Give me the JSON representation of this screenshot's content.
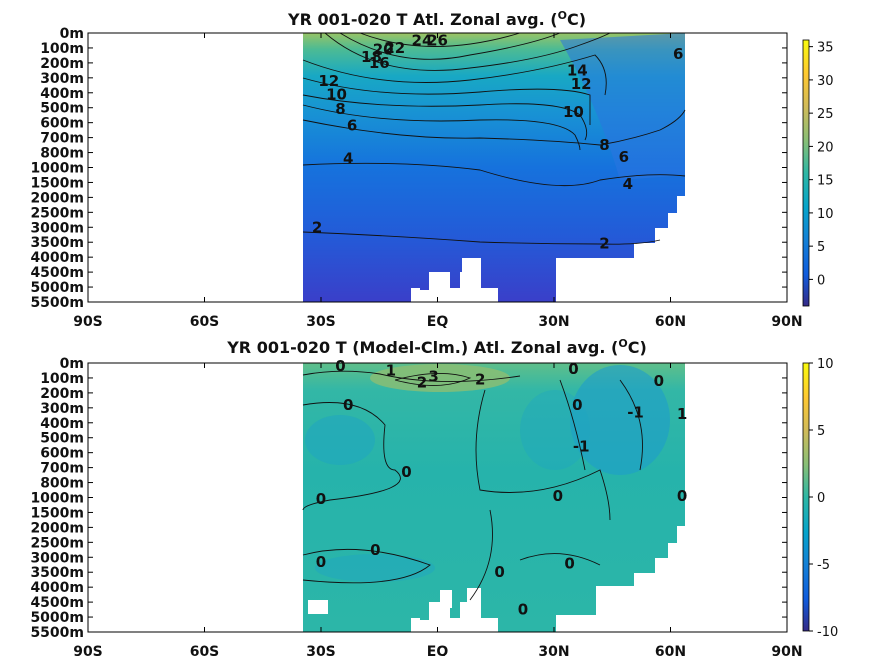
{
  "chart_data": [
    {
      "type": "heatmap",
      "title": "YR 001-020 T Atl. Zonal avg. (",
      "title_sup": "O",
      "title_end": "C)",
      "xlim": [
        -90,
        90
      ],
      "x_ticks": [
        -90,
        -60,
        -30,
        0,
        30,
        60,
        90
      ],
      "x_tick_labels": [
        "90S",
        "60S",
        "30S",
        "EQ",
        "30N",
        "60N",
        "90N"
      ],
      "y_tick_labels": [
        "0m",
        "100m",
        "200m",
        "300m",
        "400m",
        "500m",
        "600m",
        "700m",
        "800m",
        "1000m",
        "1500m",
        "2000m",
        "2500m",
        "3000m",
        "3500m",
        "4000m",
        "4500m",
        "5000m",
        "5500m"
      ],
      "colorbar": {
        "min": -4,
        "max": 36,
        "ticks": [
          0,
          5,
          10,
          15,
          20,
          25,
          30,
          35
        ]
      },
      "data_extent": {
        "lat": [
          -35,
          64
        ]
      },
      "contour_labels": [
        {
          "text": "26",
          "lat": 0,
          "level": 0.5
        },
        {
          "text": "24",
          "lat": -4,
          "level": 0.5
        },
        {
          "text": "22",
          "lat": -11,
          "level": 1
        },
        {
          "text": "20",
          "lat": -14,
          "level": 1.1
        },
        {
          "text": "18",
          "lat": -17,
          "level": 1.6
        },
        {
          "text": "16",
          "lat": -15,
          "level": 2
        },
        {
          "text": "14",
          "lat": 36,
          "level": 2.5
        },
        {
          "text": "12",
          "lat": -28,
          "level": 3.2
        },
        {
          "text": "12",
          "lat": 37,
          "level": 3.4
        },
        {
          "text": "10",
          "lat": -26,
          "level": 4.1
        },
        {
          "text": "10",
          "lat": 35,
          "level": 5.3
        },
        {
          "text": "8",
          "lat": -25,
          "level": 5.1
        },
        {
          "text": "8",
          "lat": 43,
          "level": 7.5
        },
        {
          "text": "6",
          "lat": -22,
          "level": 6.2
        },
        {
          "text": "6",
          "lat": 62,
          "level": 1.4
        },
        {
          "text": "6",
          "lat": 48,
          "level": 8.3
        },
        {
          "text": "4",
          "lat": -23,
          "level": 8.4
        },
        {
          "text": "4",
          "lat": 49,
          "level": 10.1
        },
        {
          "text": "2",
          "lat": -31,
          "level": 13
        },
        {
          "text": "2",
          "lat": 43,
          "level": 14.1
        }
      ]
    },
    {
      "type": "heatmap",
      "title": "YR 001-020 T (Model-Clm.) Atl. Zonal avg. (",
      "title_sup": "O",
      "title_end": "C)",
      "xlim": [
        -90,
        90
      ],
      "x_ticks": [
        -90,
        -60,
        -30,
        0,
        30,
        60,
        90
      ],
      "x_tick_labels": [
        "90S",
        "60S",
        "30S",
        "EQ",
        "30N",
        "60N",
        "90N"
      ],
      "y_tick_labels": [
        "0m",
        "100m",
        "200m",
        "300m",
        "400m",
        "500m",
        "600m",
        "700m",
        "800m",
        "1000m",
        "1500m",
        "2000m",
        "2500m",
        "3000m",
        "3500m",
        "4000m",
        "4500m",
        "5000m",
        "5500m"
      ],
      "colorbar": {
        "min": -10,
        "max": 10,
        "ticks": [
          10,
          5,
          0,
          -5,
          -10
        ]
      },
      "data_extent": {
        "lat": [
          -35,
          64
        ]
      },
      "contour_labels": [
        {
          "text": "0",
          "lat": -25,
          "level": 0.2
        },
        {
          "text": "1",
          "lat": -12,
          "level": 0.5
        },
        {
          "text": "3",
          "lat": -1,
          "level": 0.9
        },
        {
          "text": "2",
          "lat": -4,
          "level": 1.3
        },
        {
          "text": "2",
          "lat": 11,
          "level": 1.1
        },
        {
          "text": "0",
          "lat": 35,
          "level": 0.4
        },
        {
          "text": "0",
          "lat": 57,
          "level": 1.2
        },
        {
          "text": "-1",
          "lat": 51,
          "level": 3.3
        },
        {
          "text": "1",
          "lat": 63,
          "level": 3.4
        },
        {
          "text": "-1",
          "lat": 37,
          "level": 5.6
        },
        {
          "text": "0",
          "lat": -23,
          "level": 2.8
        },
        {
          "text": "0",
          "lat": 36,
          "level": 2.8
        },
        {
          "text": "0",
          "lat": -8,
          "level": 7.3
        },
        {
          "text": "0",
          "lat": -30,
          "level": 9.1
        },
        {
          "text": "0",
          "lat": 31,
          "level": 8.9
        },
        {
          "text": "0",
          "lat": 63,
          "level": 8.9
        },
        {
          "text": "0",
          "lat": -16,
          "level": 12.5
        },
        {
          "text": "0",
          "lat": 34,
          "level": 13.4
        },
        {
          "text": "0",
          "lat": -30,
          "level": 13.3
        },
        {
          "text": "0",
          "lat": 16,
          "level": 14
        },
        {
          "text": "0",
          "lat": 22,
          "level": 16.5
        }
      ]
    }
  ]
}
